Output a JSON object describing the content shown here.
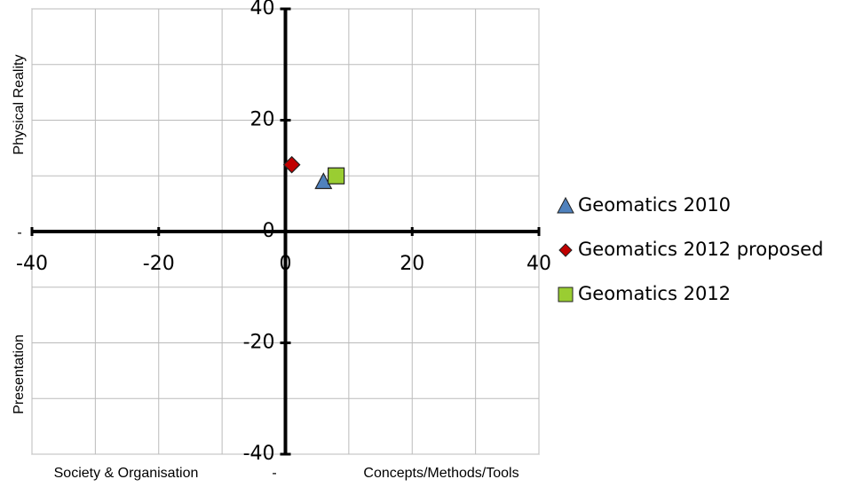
{
  "chart_data": {
    "type": "scatter",
    "series": [
      {
        "name": "Geomatics 2010",
        "color": "#4f81bd",
        "marker": "triangle",
        "x": [
          6
        ],
        "values": [
          9
        ]
      },
      {
        "name": "Geomatics 2012 proposed",
        "color": "#c00000",
        "marker": "diamond",
        "x": [
          1
        ],
        "values": [
          12
        ]
      },
      {
        "name": "Geomatics 2012",
        "color": "#9acd32",
        "marker": "square",
        "x": [
          8
        ],
        "values": [
          10
        ]
      }
    ],
    "xlim": [
      -40,
      40
    ],
    "ylim": [
      -40,
      40
    ],
    "xticks": [
      -40,
      -20,
      0,
      20,
      40
    ],
    "yticks": [
      -40,
      -20,
      0,
      20,
      40
    ],
    "xgrid": [
      -40,
      -30,
      -20,
      -10,
      0,
      10,
      20,
      30,
      40
    ],
    "ygrid": [
      -40,
      -30,
      -20,
      -10,
      0,
      10,
      20,
      30,
      40
    ],
    "grid": true,
    "legend": "right",
    "annotations": [
      "Physical Reality",
      "Presentation",
      "Society & Organisation",
      "Concepts/Methods/Tools",
      "-",
      "-"
    ]
  }
}
